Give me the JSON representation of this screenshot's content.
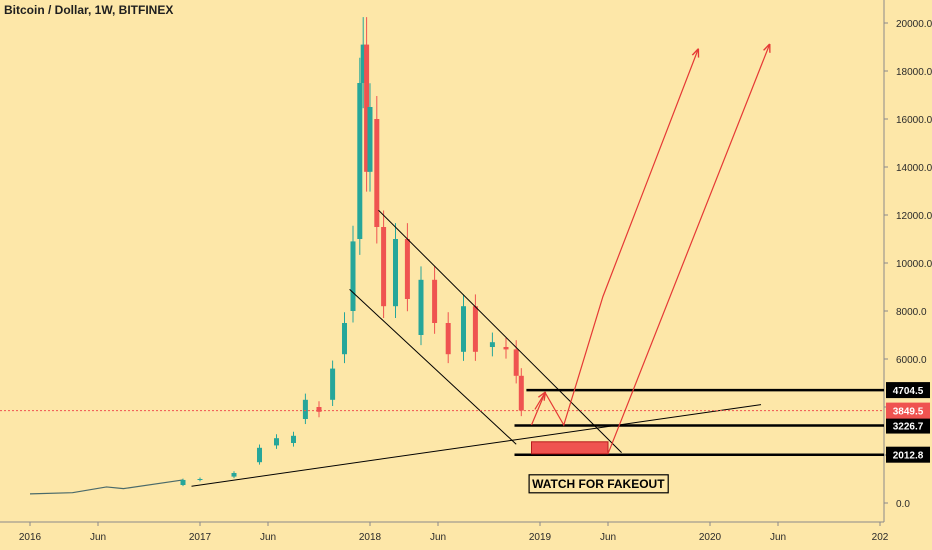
{
  "chart_data": {
    "type": "candlestick",
    "title": "Bitcoin / Dollar, 1W, BITFINEX",
    "x_ticks": [
      "2016",
      "Jun",
      "2017",
      "Jun",
      "2018",
      "Jun",
      "2019",
      "Jun",
      "2020",
      "Jun",
      "202"
    ],
    "y_ticks": [
      "20000.0",
      "18000.0",
      "16000.0",
      "14000.0",
      "12000.0",
      "10000.0",
      "8000.0",
      "6000.0",
      "4000.0",
      "2000.0",
      "0.0"
    ],
    "y_range": [
      -300,
      21200
    ],
    "current_price": {
      "value": 3849.5,
      "label": "3849.5",
      "color": "#ef5350"
    },
    "levels": [
      {
        "value": 4704.5,
        "label": "4704.5"
      },
      {
        "value": 3226.7,
        "label": "3226.7"
      },
      {
        "value": 2012.8,
        "label": "2012.8"
      }
    ],
    "annotation": "WATCH FOR FAKEOUT",
    "colors": {
      "up": "#26a69a",
      "down": "#ef5350",
      "arrow": "#e53935",
      "background": "#fde7a8"
    },
    "series": [
      {
        "x": 2016.0,
        "open": 430,
        "close": 380
      },
      {
        "x": 2016.25,
        "open": 410,
        "close": 430
      },
      {
        "x": 2016.45,
        "open": 560,
        "close": 670
      },
      {
        "x": 2016.55,
        "open": 670,
        "close": 600
      },
      {
        "x": 2016.9,
        "open": 750,
        "close": 960
      },
      {
        "x": 2017.0,
        "open": 960,
        "close": 1000
      },
      {
        "x": 2017.2,
        "open": 1100,
        "close": 1250
      },
      {
        "x": 2017.35,
        "open": 1700,
        "close": 2300
      },
      {
        "x": 2017.45,
        "open": 2400,
        "close": 2700
      },
      {
        "x": 2017.55,
        "open": 2500,
        "close": 2800
      },
      {
        "x": 2017.62,
        "open": 3500,
        "close": 4300
      },
      {
        "x": 2017.7,
        "open": 4000,
        "close": 3800
      },
      {
        "x": 2017.78,
        "open": 4300,
        "close": 5600
      },
      {
        "x": 2017.85,
        "open": 6200,
        "close": 7500
      },
      {
        "x": 2017.9,
        "open": 8000,
        "close": 10900
      },
      {
        "x": 2017.94,
        "open": 11000,
        "close": 17500
      },
      {
        "x": 2017.96,
        "open": 17500,
        "close": 19100
      },
      {
        "x": 2017.98,
        "open": 19100,
        "close": 13800
      },
      {
        "x": 2018.0,
        "open": 13800,
        "close": 16500
      },
      {
        "x": 2018.04,
        "open": 16000,
        "close": 11500
      },
      {
        "x": 2018.08,
        "open": 11500,
        "close": 8200
      },
      {
        "x": 2018.15,
        "open": 8200,
        "close": 11000
      },
      {
        "x": 2018.22,
        "open": 11000,
        "close": 8500
      },
      {
        "x": 2018.3,
        "open": 7000,
        "close": 9300
      },
      {
        "x": 2018.38,
        "open": 9300,
        "close": 7500
      },
      {
        "x": 2018.46,
        "open": 7500,
        "close": 6200
      },
      {
        "x": 2018.55,
        "open": 6300,
        "close": 8200
      },
      {
        "x": 2018.62,
        "open": 8200,
        "close": 6300
      },
      {
        "x": 2018.72,
        "open": 6500,
        "close": 6700
      },
      {
        "x": 2018.8,
        "open": 6500,
        "close": 6400
      },
      {
        "x": 2018.86,
        "open": 6400,
        "close": 5300
      },
      {
        "x": 2018.89,
        "open": 5300,
        "close": 3850
      }
    ]
  }
}
